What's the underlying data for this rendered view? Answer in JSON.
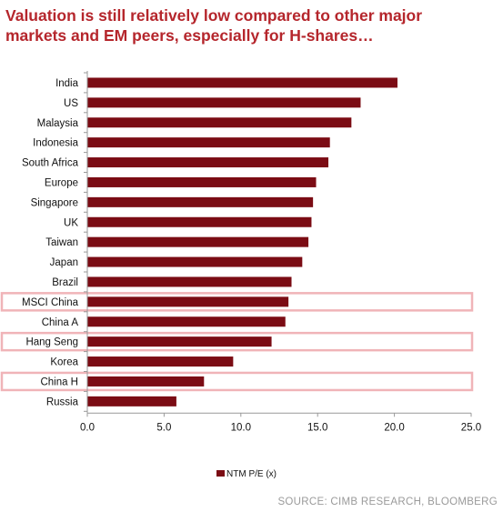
{
  "title_lines": [
    "Valuation is still relatively low compared to other major",
    "markets and EM peers, especially for H-shares…"
  ],
  "source": "SOURCE: CIMB RESEARCH, BLOOMBERG",
  "colors": {
    "title": "#b5262c",
    "bar": "#7b0c14",
    "highlight_box": "#f0b4b8",
    "axis": "#999999",
    "source_text": "#9a9a9a"
  },
  "chart_data": {
    "type": "bar",
    "orientation": "horizontal",
    "categories": [
      "India",
      "US",
      "Malaysia",
      "Indonesia",
      "South Africa",
      "Europe",
      "Singapore",
      "UK",
      "Taiwan",
      "Japan",
      "Brazil",
      "MSCI China",
      "China A",
      "Hang Seng",
      "Korea",
      "China H",
      "Russia"
    ],
    "series": [
      {
        "name": "NTM P/E (x)",
        "values": [
          20.2,
          17.8,
          17.2,
          15.8,
          15.7,
          14.9,
          14.7,
          14.6,
          14.4,
          14.0,
          13.3,
          13.1,
          12.9,
          12.0,
          9.5,
          7.6,
          5.8
        ]
      }
    ],
    "highlighted_categories": [
      "MSCI China",
      "Hang Seng",
      "China H"
    ],
    "xlim": [
      0,
      25
    ],
    "xticks": [
      "0.0",
      "5.0",
      "10.0",
      "15.0",
      "20.0",
      "25.0"
    ],
    "grid": false,
    "legend_position": "bottom-center"
  }
}
